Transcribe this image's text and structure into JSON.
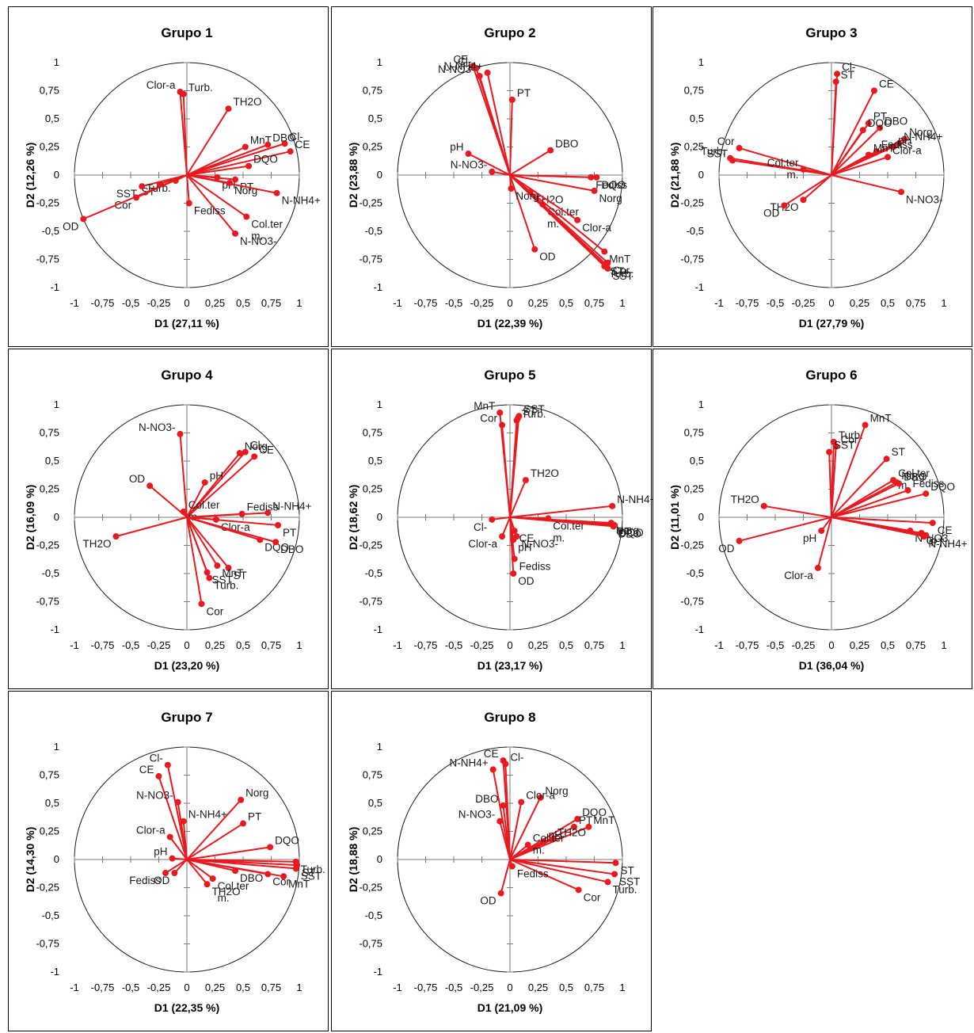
{
  "chart_data": [
    {
      "type": "scatter",
      "title": "Grupo 1",
      "xlabel": "D1 (27,11 %)",
      "ylabel": "D2 (12,26 %)",
      "xlim": [
        -1,
        1
      ],
      "ylim": [
        -1,
        1
      ],
      "x_ticks": [
        "-1",
        "-0,75",
        "-0,5",
        "-0,25",
        "0",
        "0,25",
        "0,5",
        "0,75",
        "1"
      ],
      "y_ticks": [
        "1",
        "0,75",
        "0,5",
        "0,25",
        "0",
        "-0,25",
        "-0,5",
        "-0,75",
        "-1"
      ],
      "grid": false,
      "variables": [
        {
          "name": "Clor-a",
          "x": -0.06,
          "y": 0.74
        },
        {
          "name": "Turb.",
          "x": -0.03,
          "y": 0.72
        },
        {
          "name": "TH2O",
          "x": 0.37,
          "y": 0.59
        },
        {
          "name": "MnT",
          "x": 0.52,
          "y": 0.25
        },
        {
          "name": "Cl-",
          "x": 0.87,
          "y": 0.28
        },
        {
          "name": "CE",
          "x": 0.92,
          "y": 0.21
        },
        {
          "name": "DBO",
          "x": 0.72,
          "y": 0.27
        },
        {
          "name": "DQO",
          "x": 0.55,
          "y": 0.08
        },
        {
          "name": "pH",
          "x": 0.27,
          "y": -0.02
        },
        {
          "name": "PT",
          "x": 0.43,
          "y": -0.04
        },
        {
          "name": "Norg",
          "x": 0.38,
          "y": -0.07
        },
        {
          "name": "N-NH4+",
          "x": 0.8,
          "y": -0.16
        },
        {
          "name": "Col.ter m.",
          "x": 0.53,
          "y": -0.37
        },
        {
          "name": "N-NO3-",
          "x": 0.43,
          "y": -0.52
        },
        {
          "name": "Fediss",
          "x": 0.02,
          "y": -0.25
        },
        {
          "name": "ST",
          "x": -0.24,
          "y": -0.08
        },
        {
          "name": "SST",
          "x": -0.4,
          "y": -0.1
        },
        {
          "name": "Cor",
          "x": -0.45,
          "y": -0.2
        },
        {
          "name": "Turb.",
          "x": -0.1,
          "y": -0.05
        },
        {
          "name": "OD",
          "x": -0.92,
          "y": -0.39
        }
      ]
    },
    {
      "type": "scatter",
      "title": "Grupo 2",
      "xlabel": "D1 (22,39 %)",
      "ylabel": "D2 (23,88 %)",
      "xlim": [
        -1,
        1
      ],
      "ylim": [
        -1,
        1
      ],
      "x_ticks": [
        "-1",
        "-0,75",
        "-0,5",
        "-0,25",
        "0",
        "0,25",
        "0,5",
        "0,75",
        "1"
      ],
      "y_ticks": [
        "1",
        "0,75",
        "0,5",
        "0,25",
        "0",
        "-0,25",
        "-0,5",
        "-0,75",
        "-1"
      ],
      "grid": false,
      "variables": [
        {
          "name": "CE",
          "x": -0.33,
          "y": 0.97
        },
        {
          "name": "Cl-",
          "x": -0.3,
          "y": 0.95
        },
        {
          "name": "N-NH4+",
          "x": -0.2,
          "y": 0.91
        },
        {
          "name": "N-NO3-",
          "x": -0.27,
          "y": 0.88
        },
        {
          "name": "PT",
          "x": 0.02,
          "y": 0.67
        },
        {
          "name": "DBO",
          "x": 0.36,
          "y": 0.22
        },
        {
          "name": "pH",
          "x": -0.37,
          "y": 0.19
        },
        {
          "name": "N-NO3-",
          "x": -0.16,
          "y": 0.03
        },
        {
          "name": "Fediss",
          "x": 0.72,
          "y": -0.02
        },
        {
          "name": "DQO",
          "x": 0.77,
          "y": -0.02
        },
        {
          "name": "Norg",
          "x": 0.75,
          "y": -0.14
        },
        {
          "name": "Col.ter m.",
          "x": 0.29,
          "y": -0.26
        },
        {
          "name": "TH2O",
          "x": 0.18,
          "y": -0.15
        },
        {
          "name": "Clor-a",
          "x": 0.6,
          "y": -0.4
        },
        {
          "name": "MnT",
          "x": 0.84,
          "y": -0.68
        },
        {
          "name": "OD",
          "x": 0.22,
          "y": -0.66
        },
        {
          "name": "Cor",
          "x": 0.87,
          "y": -0.78
        },
        {
          "name": "Turb.",
          "x": 0.84,
          "y": -0.81
        },
        {
          "name": "SST",
          "x": 0.87,
          "y": -0.83
        },
        {
          "name": "ST",
          "x": 0.85,
          "y": -0.79
        },
        {
          "name": "Norg",
          "x": 0.01,
          "y": -0.12
        }
      ]
    },
    {
      "type": "scatter",
      "title": "Grupo 3",
      "xlabel": "D1 (27,79 %)",
      "ylabel": "D2 (21,88 %)",
      "xlim": [
        -1,
        1
      ],
      "ylim": [
        -1,
        1
      ],
      "x_ticks": [
        "-1",
        "-0,75",
        "-0,5",
        "-0,25",
        "0",
        "0,25",
        "0,5",
        "0,75",
        "1"
      ],
      "y_ticks": [
        "1",
        "0,75",
        "0,5",
        "0,25",
        "0",
        "-0,25",
        "-0,5",
        "-0,75",
        "-1"
      ],
      "grid": false,
      "variables": [
        {
          "name": "Cl-",
          "x": 0.05,
          "y": 0.9
        },
        {
          "name": "ST",
          "x": 0.04,
          "y": 0.83
        },
        {
          "name": "CE",
          "x": 0.38,
          "y": 0.75
        },
        {
          "name": "PT",
          "x": 0.33,
          "y": 0.46
        },
        {
          "name": "DBO",
          "x": 0.43,
          "y": 0.42
        },
        {
          "name": "DQO",
          "x": 0.28,
          "y": 0.4
        },
        {
          "name": "Norg",
          "x": 0.65,
          "y": 0.32
        },
        {
          "name": "N-NH4+",
          "x": 0.6,
          "y": 0.28
        },
        {
          "name": "pH",
          "x": 0.55,
          "y": 0.25
        },
        {
          "name": "Fediss",
          "x": 0.4,
          "y": 0.21
        },
        {
          "name": "MnT",
          "x": 0.33,
          "y": 0.18
        },
        {
          "name": "Clor-a",
          "x": 0.5,
          "y": 0.16
        },
        {
          "name": "N-NO3-",
          "x": 0.62,
          "y": -0.15
        },
        {
          "name": "Cor",
          "x": -0.82,
          "y": 0.24
        },
        {
          "name": "Turb.",
          "x": -0.9,
          "y": 0.15
        },
        {
          "name": "SST",
          "x": -0.88,
          "y": 0.13
        },
        {
          "name": "Col.ter m.",
          "x": -0.25,
          "y": 0.05
        },
        {
          "name": "TH2O",
          "x": -0.25,
          "y": -0.22
        },
        {
          "name": "OD",
          "x": -0.42,
          "y": -0.27
        }
      ]
    },
    {
      "type": "scatter",
      "title": "Grupo 4",
      "xlabel": "D1 (23,20 %)",
      "ylabel": "D2 (16,09 %)",
      "xlim": [
        -1,
        1
      ],
      "ylim": [
        -1,
        1
      ],
      "x_ticks": [
        "-1",
        "-0,75",
        "-0,5",
        "-0,25",
        "0",
        "0,25",
        "0,5",
        "0,75",
        "1"
      ],
      "y_ticks": [
        "1",
        "0,75",
        "0,5",
        "0,25",
        "0",
        "-0,25",
        "-0,5",
        "-0,75",
        "-1"
      ],
      "grid": false,
      "variables": [
        {
          "name": "N-NO3-",
          "x": -0.06,
          "y": 0.74
        },
        {
          "name": "Norg",
          "x": 0.47,
          "y": 0.57
        },
        {
          "name": "Cl-",
          "x": 0.52,
          "y": 0.58
        },
        {
          "name": "CE",
          "x": 0.6,
          "y": 0.54
        },
        {
          "name": "pH",
          "x": 0.16,
          "y": 0.31
        },
        {
          "name": "OD",
          "x": -0.33,
          "y": 0.28
        },
        {
          "name": "Col.ter m.",
          "x": -0.03,
          "y": 0.05
        },
        {
          "name": "Fediss",
          "x": 0.49,
          "y": 0.03
        },
        {
          "name": "N-NH4+",
          "x": 0.72,
          "y": 0.04
        },
        {
          "name": "PT",
          "x": 0.81,
          "y": -0.07
        },
        {
          "name": "Clor-a",
          "x": 0.26,
          "y": -0.02
        },
        {
          "name": "DQO",
          "x": 0.65,
          "y": -0.2
        },
        {
          "name": "DBO",
          "x": 0.79,
          "y": -0.22
        },
        {
          "name": "TH2O",
          "x": -0.63,
          "y": -0.17
        },
        {
          "name": "ST",
          "x": 0.37,
          "y": -0.45
        },
        {
          "name": "MnT",
          "x": 0.27,
          "y": -0.43
        },
        {
          "name": "SST",
          "x": 0.18,
          "y": -0.49
        },
        {
          "name": "Turb.",
          "x": 0.2,
          "y": -0.54
        },
        {
          "name": "Cor",
          "x": 0.13,
          "y": -0.77
        }
      ]
    },
    {
      "type": "scatter",
      "title": "Grupo 5",
      "xlabel": "D1 (23,17 %)",
      "ylabel": "D2 (18,62 %)",
      "xlim": [
        -1,
        1
      ],
      "ylim": [
        -1,
        1
      ],
      "x_ticks": [
        "-1",
        "-0,75",
        "-0,5",
        "-0,25",
        "0",
        "0,25",
        "0,5",
        "0,75",
        "1"
      ],
      "y_ticks": [
        "1",
        "0,75",
        "0,5",
        "0,25",
        "0",
        "-0,25",
        "-0,5",
        "-0,75",
        "-1"
      ],
      "grid": false,
      "variables": [
        {
          "name": "MnT",
          "x": -0.09,
          "y": 0.93
        },
        {
          "name": "Cor",
          "x": -0.07,
          "y": 0.82
        },
        {
          "name": "SST",
          "x": 0.08,
          "y": 0.9
        },
        {
          "name": "ST",
          "x": 0.07,
          "y": 0.88
        },
        {
          "name": "Turb.",
          "x": 0.06,
          "y": 0.86
        },
        {
          "name": "TH2O",
          "x": 0.14,
          "y": 0.33
        },
        {
          "name": "N-NH4+",
          "x": 0.91,
          "y": 0.1
        },
        {
          "name": "Col.ter m.",
          "x": 0.34,
          "y": -0.01
        },
        {
          "name": "Norg",
          "x": 0.9,
          "y": -0.05
        },
        {
          "name": "DQO",
          "x": 0.93,
          "y": -0.07
        },
        {
          "name": "DBO",
          "x": 0.92,
          "y": -0.08
        },
        {
          "name": "PT",
          "x": 0.91,
          "y": -0.06
        },
        {
          "name": "Cl-",
          "x": -0.16,
          "y": -0.02
        },
        {
          "name": "CE",
          "x": 0.04,
          "y": -0.12
        },
        {
          "name": "Clor-a",
          "x": -0.07,
          "y": -0.17
        },
        {
          "name": "N-NO3-",
          "x": 0.06,
          "y": -0.17
        },
        {
          "name": "pH",
          "x": 0.03,
          "y": -0.2
        },
        {
          "name": "Fediss",
          "x": 0.04,
          "y": -0.37
        },
        {
          "name": "OD",
          "x": 0.03,
          "y": -0.5
        }
      ]
    },
    {
      "type": "scatter",
      "title": "Grupo 6",
      "xlabel": "D1 (36,04 %)",
      "ylabel": "D2 (11,01 %)",
      "xlim": [
        -1,
        1
      ],
      "ylim": [
        -1,
        1
      ],
      "x_ticks": [
        "-1",
        "-0,75",
        "-0,5",
        "-0,25",
        "0",
        "0,25",
        "0,5",
        "0,75",
        "1"
      ],
      "y_ticks": [
        "1",
        "0,75",
        "0,5",
        "0,25",
        "0",
        "-0,25",
        "-0,5",
        "-0,75",
        "-1"
      ],
      "grid": false,
      "variables": [
        {
          "name": "MnT",
          "x": 0.3,
          "y": 0.82
        },
        {
          "name": "Turb.",
          "x": 0.02,
          "y": 0.67
        },
        {
          "name": "Cor",
          "x": 0.04,
          "y": 0.63
        },
        {
          "name": "SST",
          "x": -0.02,
          "y": 0.58
        },
        {
          "name": "ST",
          "x": 0.49,
          "y": 0.52
        },
        {
          "name": "Col.ter m.",
          "x": 0.55,
          "y": 0.33
        },
        {
          "name": "DBO",
          "x": 0.6,
          "y": 0.3
        },
        {
          "name": "Norg",
          "x": 0.58,
          "y": 0.31
        },
        {
          "name": "Fediss",
          "x": 0.68,
          "y": 0.24
        },
        {
          "name": "DQO",
          "x": 0.84,
          "y": 0.21
        },
        {
          "name": "TH2O",
          "x": -0.6,
          "y": 0.1
        },
        {
          "name": "CE",
          "x": 0.9,
          "y": -0.05
        },
        {
          "name": "N-NO3",
          "x": 0.7,
          "y": -0.12
        },
        {
          "name": "Cl-",
          "x": 0.8,
          "y": -0.14
        },
        {
          "name": "PT",
          "x": 0.84,
          "y": -0.16
        },
        {
          "name": "N-NH4+",
          "x": 0.82,
          "y": -0.17
        },
        {
          "name": "pH",
          "x": -0.09,
          "y": -0.12
        },
        {
          "name": "OD",
          "x": -0.82,
          "y": -0.21
        },
        {
          "name": "Clor-a",
          "x": -0.12,
          "y": -0.45
        }
      ]
    },
    {
      "type": "scatter",
      "title": "Grupo 7",
      "xlabel": "D1 (22,35 %)",
      "ylabel": "D2 (14,30 %)",
      "xlim": [
        -1,
        1
      ],
      "ylim": [
        -1,
        1
      ],
      "x_ticks": [
        "-1",
        "-0,75",
        "-0,5",
        "-0,25",
        "0",
        "0,25",
        "0,5",
        "0,75",
        "1"
      ],
      "y_ticks": [
        "1",
        "0,75",
        "0,5",
        "0,25",
        "0",
        "-0,25",
        "-0,5",
        "-0,75",
        "-1"
      ],
      "grid": false,
      "variables": [
        {
          "name": "Cl-",
          "x": -0.17,
          "y": 0.84
        },
        {
          "name": "CE",
          "x": -0.25,
          "y": 0.74
        },
        {
          "name": "N-NO3-",
          "x": -0.08,
          "y": 0.51
        },
        {
          "name": "Norg",
          "x": 0.48,
          "y": 0.53
        },
        {
          "name": "N-NH4+",
          "x": -0.03,
          "y": 0.34
        },
        {
          "name": "PT",
          "x": 0.5,
          "y": 0.32
        },
        {
          "name": "Clor-a",
          "x": -0.15,
          "y": 0.2
        },
        {
          "name": "DQO",
          "x": 0.74,
          "y": 0.11
        },
        {
          "name": "pH",
          "x": -0.13,
          "y": 0.01
        },
        {
          "name": "Fediss",
          "x": -0.19,
          "y": -0.12
        },
        {
          "name": "OD",
          "x": -0.11,
          "y": -0.12
        },
        {
          "name": "DBO",
          "x": 0.43,
          "y": -0.1
        },
        {
          "name": "Col.ter m.",
          "x": 0.23,
          "y": -0.17
        },
        {
          "name": "TH2O",
          "x": 0.18,
          "y": -0.22
        },
        {
          "name": "Turb.",
          "x": 0.97,
          "y": -0.02
        },
        {
          "name": "ST",
          "x": 0.98,
          "y": -0.05
        },
        {
          "name": "SST",
          "x": 0.97,
          "y": -0.08
        },
        {
          "name": "Cor",
          "x": 0.72,
          "y": -0.13
        },
        {
          "name": "MnT",
          "x": 0.86,
          "y": -0.15
        }
      ]
    },
    {
      "type": "scatter",
      "title": "Grupo 8",
      "xlabel": "D1 (21,09 %)",
      "ylabel": "D2 (18,88 %)",
      "xlim": [
        -1,
        1
      ],
      "ylim": [
        -1,
        1
      ],
      "x_ticks": [
        "-1",
        "-0,75",
        "-0,5",
        "-0,25",
        "0",
        "0,25",
        "0,5",
        "0,75",
        "1"
      ],
      "y_ticks": [
        "1",
        "0,75",
        "0,5",
        "0,25",
        "0",
        "-0,25",
        "-0,5",
        "-0,75",
        "-1"
      ],
      "grid": false,
      "variables": [
        {
          "name": "CE",
          "x": -0.06,
          "y": 0.88
        },
        {
          "name": "Cl-",
          "x": -0.04,
          "y": 0.85
        },
        {
          "name": "N-NH4+",
          "x": -0.15,
          "y": 0.8
        },
        {
          "name": "Norg",
          "x": 0.27,
          "y": 0.55
        },
        {
          "name": "Clor-a",
          "x": 0.1,
          "y": 0.51
        },
        {
          "name": "DBO",
          "x": -0.06,
          "y": 0.48
        },
        {
          "name": "N-NO3-",
          "x": -0.09,
          "y": 0.34
        },
        {
          "name": "DQO",
          "x": 0.6,
          "y": 0.36
        },
        {
          "name": "PT",
          "x": 0.57,
          "y": 0.29
        },
        {
          "name": "MnT",
          "x": 0.7,
          "y": 0.29
        },
        {
          "name": "pH",
          "x": 0.3,
          "y": 0.16
        },
        {
          "name": "TH2O",
          "x": 0.38,
          "y": 0.18
        },
        {
          "name": "Col.ter m.",
          "x": 0.16,
          "y": 0.13
        },
        {
          "name": "ST",
          "x": 0.94,
          "y": -0.03
        },
        {
          "name": "SST",
          "x": 0.93,
          "y": -0.13
        },
        {
          "name": "Turb.",
          "x": 0.87,
          "y": -0.2
        },
        {
          "name": "Cor",
          "x": 0.61,
          "y": -0.27
        },
        {
          "name": "Fediss",
          "x": 0.02,
          "y": -0.06
        },
        {
          "name": "OD",
          "x": -0.08,
          "y": -0.3
        }
      ]
    }
  ],
  "style": {
    "vector_color": "#e8191f",
    "circle_color": "#1a1a1a",
    "axis_color": "#7a7a7a"
  }
}
